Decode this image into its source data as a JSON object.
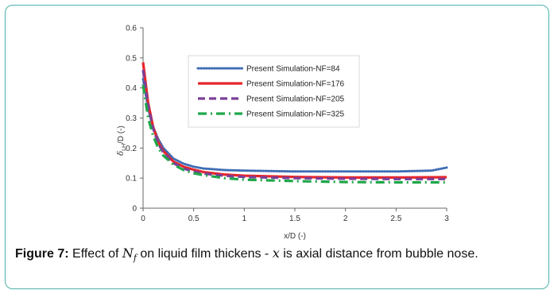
{
  "chart_data": {
    "type": "line",
    "xlabel": "x/D (-)",
    "ylabel": {
      "main": "δ",
      "sub": "LH",
      "rest": "/D (-)"
    },
    "xlim": [
      0,
      3
    ],
    "ylim": [
      0,
      0.6
    ],
    "xticks": [
      0,
      0.5,
      1,
      1.5,
      2,
      2.5,
      3
    ],
    "xtick_labels": [
      "0",
      "0.5",
      "1",
      "1.5",
      "2",
      "2.5",
      "3"
    ],
    "yticks": [
      0,
      0.1,
      0.2,
      0.3,
      0.4,
      0.5,
      0.6
    ],
    "ytick_labels": [
      "0",
      "0.1",
      "0.2",
      "0.3",
      "0.4",
      "0.5",
      "0.6"
    ],
    "grid": false,
    "legend_position": "upper-center",
    "series": [
      {
        "name": "Present Simulation-NF=84",
        "color": "#3f6db4",
        "style": "dotted",
        "x": [
          0,
          0.05,
          0.1,
          0.15,
          0.2,
          0.3,
          0.4,
          0.5,
          0.6,
          0.8,
          1.0,
          1.5,
          2.0,
          2.5,
          2.85,
          3.0
        ],
        "y": [
          0.43,
          0.33,
          0.27,
          0.23,
          0.2,
          0.165,
          0.148,
          0.138,
          0.132,
          0.127,
          0.125,
          0.122,
          0.122,
          0.122,
          0.125,
          0.135
        ]
      },
      {
        "name": "Present Simulation-NF=176",
        "color": "#e8262a",
        "style": "solid",
        "x": [
          0,
          0.05,
          0.1,
          0.15,
          0.2,
          0.3,
          0.4,
          0.5,
          0.6,
          0.8,
          1.0,
          1.5,
          2.0,
          2.5,
          3.0
        ],
        "y": [
          0.485,
          0.35,
          0.27,
          0.22,
          0.19,
          0.155,
          0.138,
          0.128,
          0.12,
          0.112,
          0.108,
          0.104,
          0.102,
          0.102,
          0.103
        ]
      },
      {
        "name": "Present Simulation-NF=205",
        "color": "#7b3f98",
        "style": "dashed",
        "x": [
          0,
          0.05,
          0.1,
          0.15,
          0.2,
          0.3,
          0.4,
          0.5,
          0.6,
          0.8,
          1.0,
          1.5,
          2.0,
          2.5,
          3.0
        ],
        "y": [
          0.46,
          0.34,
          0.265,
          0.215,
          0.185,
          0.15,
          0.132,
          0.122,
          0.115,
          0.108,
          0.104,
          0.1,
          0.098,
          0.097,
          0.097
        ]
      },
      {
        "name": "Present Simulation-NF=325",
        "color": "#1fa64a",
        "style": "dashdot",
        "x": [
          0,
          0.05,
          0.1,
          0.15,
          0.2,
          0.3,
          0.4,
          0.5,
          0.6,
          0.8,
          1.0,
          1.5,
          2.0,
          2.5,
          3.0
        ],
        "y": [
          0.41,
          0.3,
          0.24,
          0.2,
          0.175,
          0.145,
          0.127,
          0.116,
          0.11,
          0.1,
          0.095,
          0.09,
          0.087,
          0.086,
          0.086
        ]
      }
    ]
  },
  "caption": {
    "label": "Figure 7:",
    "text_before": "Effect of",
    "symbol_main": "N",
    "symbol_sub": "f",
    "text_middle": "on liquid film thickens -",
    "symbol_x": "x",
    "text_after": "is axial distance from bubble nose."
  }
}
